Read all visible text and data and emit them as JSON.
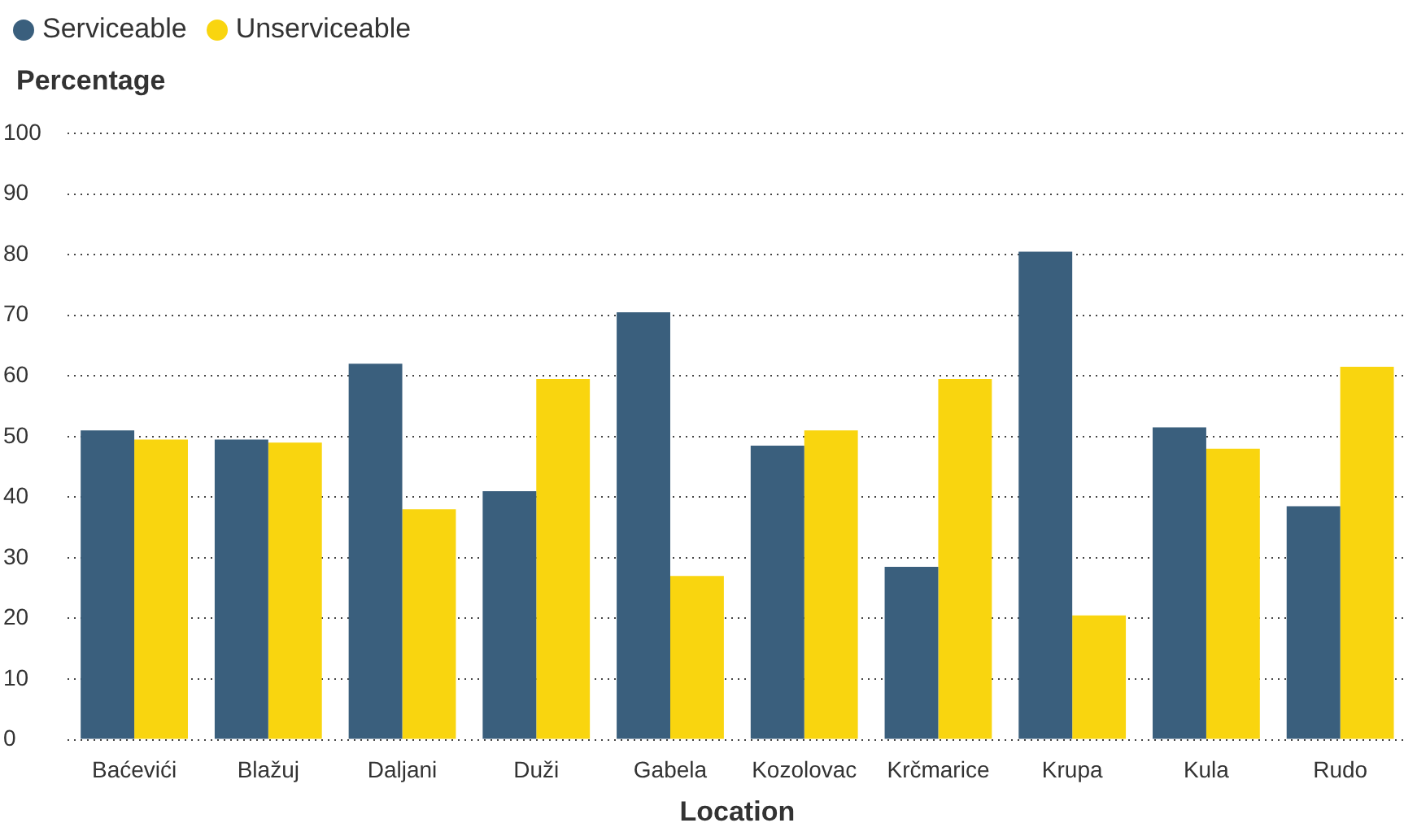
{
  "chart_data": {
    "type": "bar",
    "xlabel": "Location",
    "ylabel": "Percentage",
    "categories": [
      "Baćevići",
      "Blažuj",
      "Daljani",
      "Duži",
      "Gabela",
      "Kozolovac",
      "Krčmarice",
      "Krupa",
      "Kula",
      "Rudo"
    ],
    "series": [
      {
        "name": "Serviceable",
        "color": "#3a5f7d",
        "values": [
          51,
          49.5,
          62,
          41,
          70.5,
          48.5,
          28.5,
          80.5,
          51.5,
          38.5
        ]
      },
      {
        "name": "Unserviceable",
        "color": "#f9d50f",
        "values": [
          49.5,
          49,
          38,
          59.5,
          27,
          51,
          59.5,
          20.5,
          48,
          61.5
        ]
      }
    ],
    "ylim": [
      0,
      100
    ],
    "yticks": [
      0,
      10,
      20,
      30,
      40,
      50,
      60,
      70,
      80,
      90,
      100
    ],
    "grid": "y",
    "legend": "top left"
  }
}
